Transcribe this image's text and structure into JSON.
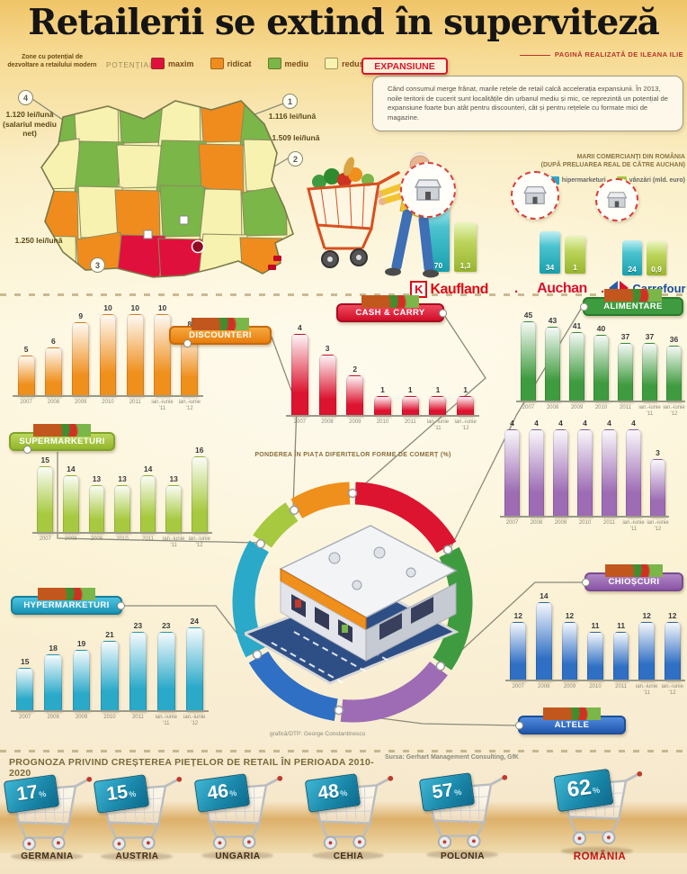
{
  "title": "Retailerii se extind în superviteză",
  "byline": "PAGINĂ REALIZATĂ DE ILEANA ILIE",
  "source": "Sursa: Gerhart Management Consulting, GfK",
  "credit": "grafică/DTP: George Constantinescu",
  "map": {
    "note": "Zone cu potențial de dezvoltare a retailului modern",
    "legend_label": "POTENȚIAL",
    "legend": [
      {
        "label": "maxim",
        "color": "#e0103c"
      },
      {
        "label": "ridicat",
        "color": "#f08c1e"
      },
      {
        "label": "mediu",
        "color": "#7ab648"
      },
      {
        "label": "redus",
        "color": "#f7f2b0"
      }
    ],
    "callouts": [
      {
        "num": "4",
        "text": "1.120 lei/lună (salariul mediu net)"
      },
      {
        "num": "1",
        "text": "1.116 lei/lună"
      },
      {
        "num": "2",
        "text": "1.509 lei/lună"
      },
      {
        "num": "3",
        "text": "1.250 lei/lună"
      }
    ],
    "cells": [
      [
        "g",
        "y",
        "g",
        "y",
        "o",
        "g"
      ],
      [
        "y",
        "g",
        "y",
        "g",
        "o",
        "y"
      ],
      [
        "o",
        "y",
        "o",
        "g",
        "y",
        "g"
      ],
      [
        "y",
        "o",
        "m",
        "m",
        "y",
        "o"
      ]
    ]
  },
  "expansion": {
    "label": "EXPANSIUNE",
    "text": "Când consumul merge frânat, marile rețele de retail calcă accelerația expansiunii. În 2013, noile teritorii de cucerit sunt localitățile din urbanul mediu și mic, ce reprezintă un potențial de expansiune foarte bun atât pentru discounteri, cât și pentru rețelele cu formate mici de magazine."
  },
  "retailers": {
    "caption1": "MARII COMERCIANȚI DIN ROMÂNIA",
    "caption2": "(DUPĂ PRELUAREA REAL DE CĂTRE AUCHAN)",
    "legend": [
      {
        "label": "hipermarketuri",
        "color": "#2aa9c9"
      },
      {
        "label": "vânzări (mld. euro)",
        "color": "#a7c93f"
      }
    ],
    "items": [
      {
        "name": "Kaufland",
        "stores": 70,
        "sales": "1,3"
      },
      {
        "name": "Auchan",
        "stores": 34,
        "sales": "1"
      },
      {
        "name": "Carrefour",
        "stores": 24,
        "sales": "0,9"
      }
    ]
  },
  "chart_data": [
    {
      "id": "discounteri",
      "type": "bar",
      "title": "DISCOUNTERI",
      "color": "#ef8f1c",
      "categories": [
        "2007",
        "2008",
        "2009",
        "2010",
        "2011",
        "ian.-iunie '11",
        "ian.-iunie '12"
      ],
      "values": [
        5,
        6,
        9,
        10,
        10,
        10,
        8
      ],
      "ylim": [
        0,
        10
      ]
    },
    {
      "id": "cash_carry",
      "type": "bar",
      "title": "CASH & CARRY",
      "color": "#dc1430",
      "categories": [
        "2007",
        "2008",
        "2009",
        "2010",
        "2011",
        "ian.-iunie '11",
        "ian.-iunie '12"
      ],
      "values": [
        4,
        3,
        2,
        1,
        1,
        1,
        1
      ],
      "ylim": [
        0,
        4
      ]
    },
    {
      "id": "alimentare",
      "type": "bar",
      "title": "ALIMENTARE",
      "color": "#3f9b3f",
      "categories": [
        "2007",
        "2008",
        "2009",
        "2010",
        "2011",
        "ian.-iunie '11",
        "ian.-iunie '12"
      ],
      "values": [
        45,
        43,
        41,
        40,
        37,
        37,
        36
      ],
      "ylim": [
        15,
        45
      ]
    },
    {
      "id": "supermarketuri",
      "type": "bar",
      "title": "SUPERMARKETURI",
      "color": "#a7c93f",
      "categories": [
        "2007",
        "2008",
        "2009",
        "2010",
        "2011",
        "ian.-iunie '11",
        "ian.-iunie '12"
      ],
      "values": [
        15,
        14,
        13,
        13,
        14,
        13,
        16
      ],
      "ylim": [
        8,
        16
      ]
    },
    {
      "id": "hypermarketuri",
      "type": "bar",
      "title": "HYPERMARKETURI",
      "color": "#2aa9c9",
      "categories": [
        "2007",
        "2008",
        "2009",
        "2010",
        "2011",
        "ian.-iunie '11",
        "ian.-iunie '12"
      ],
      "values": [
        15,
        18,
        19,
        21,
        23,
        23,
        24
      ],
      "ylim": [
        5,
        24
      ]
    },
    {
      "id": "chioscuri",
      "type": "bar",
      "title": "CHIOȘCURI",
      "color": "#2f6fc4",
      "categories": [
        "2007",
        "2008",
        "2009",
        "2010",
        "2011",
        "ian.-iunie '11",
        "ian.-iunie '12"
      ],
      "values": [
        12,
        14,
        12,
        11,
        11,
        12,
        12
      ],
      "ylim": [
        6,
        14
      ]
    },
    {
      "id": "altele",
      "type": "bar",
      "title": "ALTELE",
      "color": "#9d6cb4",
      "categories": [
        "2007",
        "2008",
        "2009",
        "2010",
        "2011",
        "ian.-iunie '11",
        "ian.-iunie '12"
      ],
      "values": [
        4,
        4,
        4,
        4,
        4,
        4,
        3
      ],
      "ylim": [
        1,
        4
      ]
    },
    {
      "id": "market_share",
      "type": "pie",
      "title": "PONDEREA ÎN PIAȚA DIFERITELOR FORME DE COMERȚ (%)",
      "legend_position": "none",
      "segments": [
        {
          "name": "cash & carry",
          "color": "#dc1430",
          "share_pct": 17
        },
        {
          "name": "alimentare",
          "color": "#3f9b3f",
          "share_pct": 18
        },
        {
          "name": "altele",
          "color": "#9d6cb4",
          "share_pct": 17
        },
        {
          "name": "chioșcuri",
          "color": "#2f6fc4",
          "share_pct": 15
        },
        {
          "name": "hypermarketuri",
          "color": "#2aa9c9",
          "share_pct": 17
        },
        {
          "name": "supermarketuri",
          "color": "#a7c93f",
          "share_pct": 7
        },
        {
          "name": "discounteri",
          "color": "#ef8f1c",
          "share_pct": 9
        }
      ]
    },
    {
      "id": "mari_comercianti",
      "type": "bar",
      "title": "MARII COMERCIANȚI DIN ROMÂNIA (DUPĂ PRELUAREA REAL DE CĂTRE AUCHAN)",
      "categories": [
        "Kaufland",
        "Auchan",
        "Carrefour"
      ],
      "series": [
        {
          "name": "hipermarketuri",
          "values": [
            70,
            34,
            24
          ]
        },
        {
          "name": "vânzări (mld. euro)",
          "values": [
            1.3,
            1,
            0.9
          ]
        }
      ]
    },
    {
      "id": "prognoza",
      "type": "bar",
      "title": "PROGNOZA PRIVIND CREȘTEREA PIEȚELOR DE RETAIL ÎN PERIOADA 2010-2020",
      "unit": "%",
      "categories": [
        "GERMANIA",
        "AUSTRIA",
        "UNGARIA",
        "CEHIA",
        "POLONIA",
        "ROMÂNIA"
      ],
      "values": [
        17,
        15,
        46,
        48,
        57,
        62
      ]
    }
  ]
}
